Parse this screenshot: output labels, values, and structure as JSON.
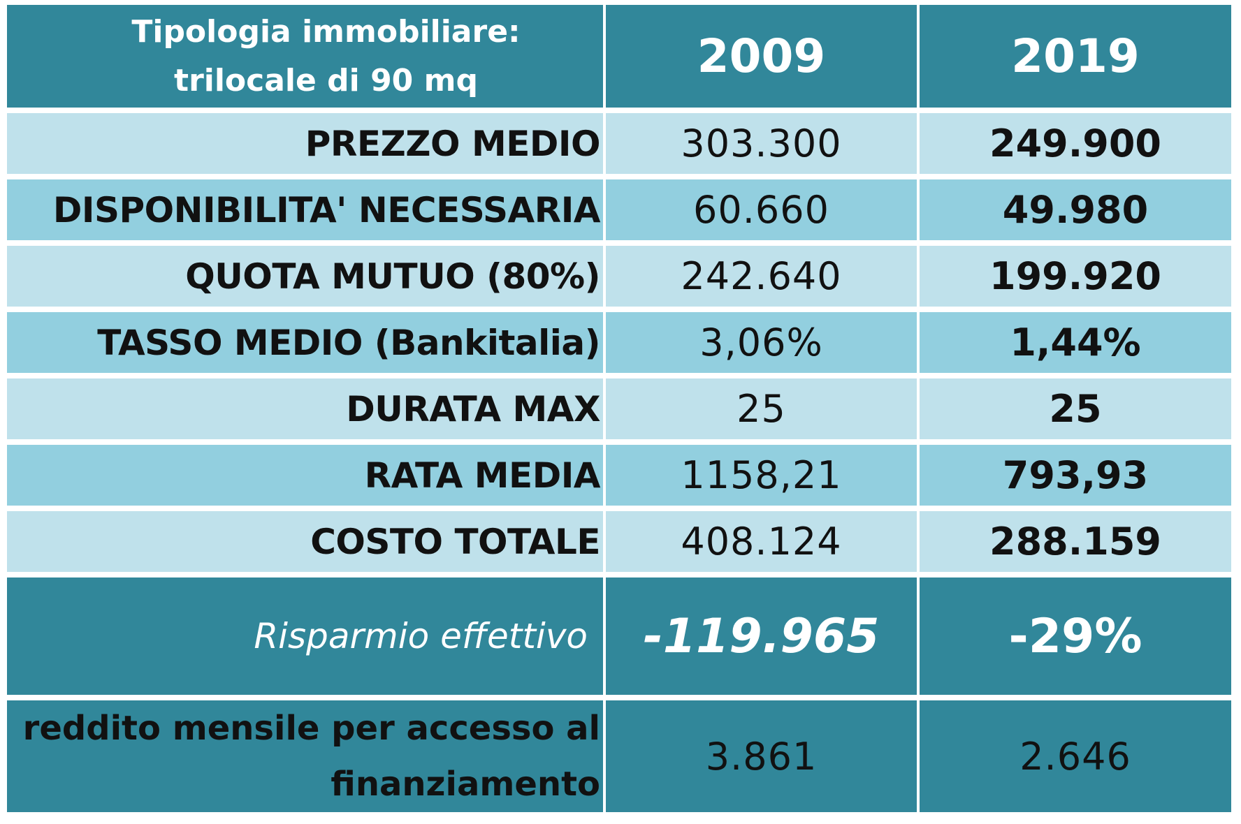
{
  "chart_data": {
    "type": "table",
    "header": {
      "label_line1": "Tipologia immobiliare:",
      "label_line2": "trilocale di 90 mq",
      "col1": "2009",
      "col2": "2019"
    },
    "rows": [
      {
        "label": "PREZZO MEDIO",
        "v2009": "303.300",
        "v2019": "249.900"
      },
      {
        "label": "DISPONIBILITA' NECESSARIA",
        "v2009": "60.660",
        "v2019": "49.980"
      },
      {
        "label": "QUOTA MUTUO (80%)",
        "v2009": "242.640",
        "v2019": "199.920"
      },
      {
        "label": "TASSO MEDIO (Bankitalia)",
        "v2009": "3,06%",
        "v2019": "1,44%"
      },
      {
        "label": "DURATA MAX",
        "v2009": "25",
        "v2019": "25"
      },
      {
        "label": "RATA MEDIA",
        "v2009": "1158,21",
        "v2019": "793,93"
      },
      {
        "label": "COSTO TOTALE",
        "v2009": "408.124",
        "v2019": "288.159"
      }
    ],
    "risparmio": {
      "label": "Risparmio effettivo",
      "value": "-119.965",
      "percent": "-29%"
    },
    "reddito": {
      "label_line1": "reddito mensile per accesso al",
      "label_line2": "finanziamento",
      "v2009": "3.861",
      "v2019": "2.646"
    }
  },
  "colors": {
    "header_bg": "#31879a",
    "row_light": "#bfe1eb",
    "row_mid": "#92cfdf",
    "header_text": "#ffffff"
  }
}
